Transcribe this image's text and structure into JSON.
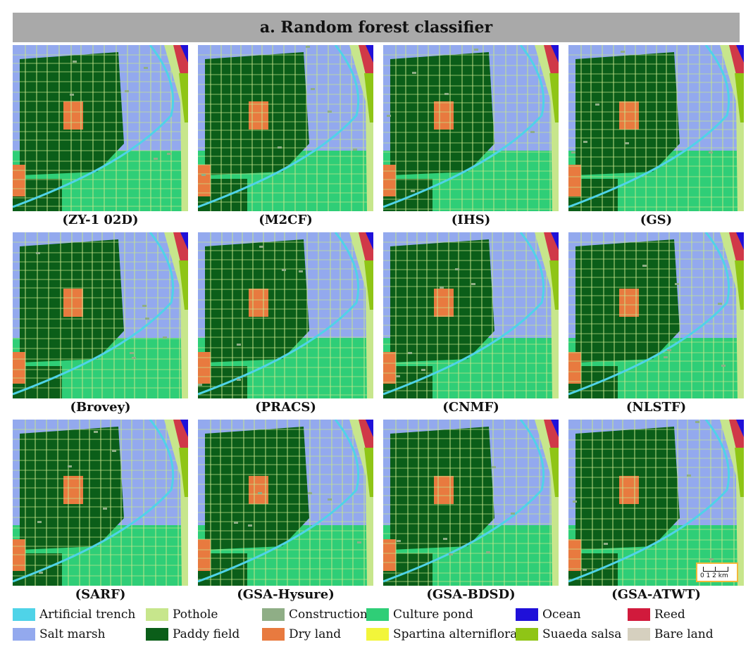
{
  "title": "a. Random forest classifier",
  "panels": [
    {
      "caption": "(ZY-1 02D)"
    },
    {
      "caption": "(M2CF)"
    },
    {
      "caption": "(IHS)"
    },
    {
      "caption": "(GS)"
    },
    {
      "caption": "(Brovey)"
    },
    {
      "caption": "(PRACS)"
    },
    {
      "caption": "(CNMF)"
    },
    {
      "caption": "(NLSTF)"
    },
    {
      "caption": "(SARF)"
    },
    {
      "caption": "(GSA-Hysure)"
    },
    {
      "caption": "(GSA-BDSD)"
    },
    {
      "caption": "(GSA-ATWT)"
    }
  ],
  "scale_bar": {
    "label": "0  1   2 km"
  },
  "legend": [
    {
      "label": "Artificial trench",
      "color": "#4fd3e8"
    },
    {
      "label": "Pothole",
      "color": "#c7e68c"
    },
    {
      "label": "Construction",
      "color": "#8fae86"
    },
    {
      "label": "Culture pond",
      "color": "#2fce77"
    },
    {
      "label": "Ocean",
      "color": "#1f10d9"
    },
    {
      "label": "Reed",
      "color": "#d11a3c"
    },
    {
      "label": "Salt marsh",
      "color": "#93a9ee"
    },
    {
      "label": "Paddy field",
      "color": "#0b5e19"
    },
    {
      "label": "Dry land",
      "color": "#e87a3f"
    },
    {
      "label": "Spartina alterniflora",
      "color": "#f2f53a"
    },
    {
      "label": "Suaeda salsa",
      "color": "#8fc516"
    },
    {
      "label": "Bare land",
      "color": "#d6d0bf"
    }
  ]
}
